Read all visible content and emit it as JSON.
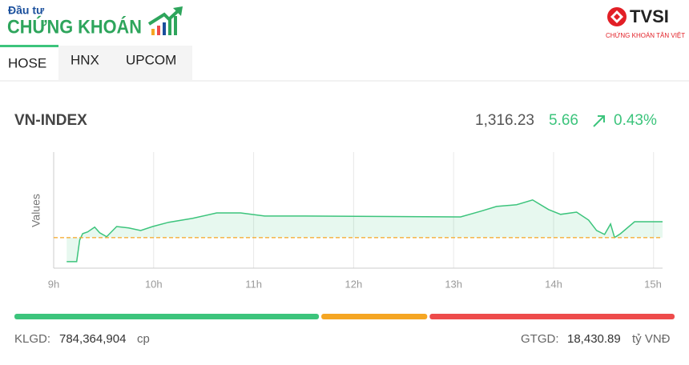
{
  "header": {
    "brand_small": "Đầu tư",
    "brand_large": "CHỨNG KHOÁN",
    "partner": "TVSI",
    "partner_tagline": "CHỨNG KHOÁN TÂN VIỆT"
  },
  "tabs": [
    "HOSE",
    "HNX",
    "UPCOM"
  ],
  "index": {
    "name": "VN-INDEX",
    "value": "1,316.23",
    "change": "5.66",
    "change_pct": "0.43%"
  },
  "chart_data": {
    "type": "line",
    "y_label": "Values",
    "x": [
      9.13,
      9.23,
      9.26,
      9.29,
      9.34,
      9.41,
      9.46,
      9.53,
      9.63,
      9.75,
      9.87,
      9.99,
      10.15,
      10.39,
      10.63,
      10.87,
      11.11,
      11.51,
      13.07,
      13.27,
      13.43,
      13.63,
      13.79,
      13.95,
      14.07,
      14.23,
      14.35,
      14.43,
      14.51,
      14.57,
      14.61,
      14.67,
      14.81,
      15.09
    ],
    "series": [
      {
        "name": "VN-INDEX",
        "color": "#3cc47c",
        "values": [
          1302.1,
          1302.1,
          1309.7,
          1312.0,
          1312.6,
          1314.3,
          1312.3,
          1310.9,
          1314.5,
          1314.0,
          1313.1,
          1314.5,
          1316.0,
          1317.4,
          1319.3,
          1319.3,
          1318.2,
          1318.2,
          1317.9,
          1319.9,
          1321.6,
          1322.2,
          1323.9,
          1320.5,
          1318.8,
          1319.6,
          1316.8,
          1313.1,
          1311.7,
          1315.4,
          1310.6,
          1312.0,
          1316.2,
          1316.2
        ]
      }
    ],
    "reference": 1310.57,
    "reference_color": "#f5a623",
    "xlim": [
      9,
      15.09
    ],
    "ylim": [
      1299.8,
      1340.8
    ],
    "xticks": [
      {
        "value": 9,
        "label": "9h"
      },
      {
        "value": 10,
        "label": "10h"
      },
      {
        "value": 11,
        "label": "11h"
      },
      {
        "value": 12,
        "label": "12h"
      },
      {
        "value": 13,
        "label": "13h"
      },
      {
        "value": 14,
        "label": "14h"
      },
      {
        "value": 15,
        "label": "15h"
      }
    ],
    "grid": true
  },
  "market_breadth": {
    "values": [
      46,
      16,
      37
    ],
    "colors": [
      "#3cc47c",
      "#f5a623",
      "#ee4b4b"
    ]
  },
  "footer": {
    "volume_label": "KLGD:",
    "volume": "784,364,904",
    "volume_unit": "cp",
    "turnover_label": "GTGD:",
    "turnover": "18,430.89",
    "turnover_unit": "tỷ VNĐ"
  }
}
